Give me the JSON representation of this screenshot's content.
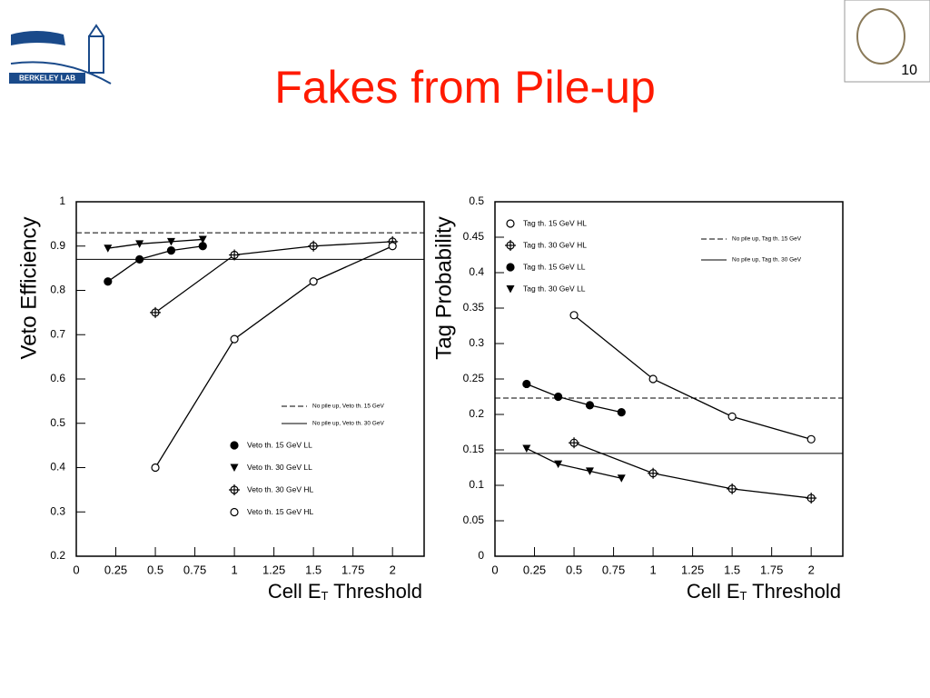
{
  "title": "Fakes from Pile-up",
  "page_number": "10",
  "logo_text": "BERKELEY LAB",
  "chart_data": [
    {
      "type": "line",
      "ylabel": "Veto Efficiency",
      "xlabel": [
        "Cell E",
        "T",
        " Threshold"
      ],
      "xlim": [
        0,
        2.2
      ],
      "ylim": [
        0.2,
        1
      ],
      "xticks": [
        0,
        0.25,
        0.5,
        0.75,
        1,
        1.25,
        1.5,
        1.75,
        2
      ],
      "yticks": [
        0.2,
        0.3,
        0.4,
        0.5,
        0.6,
        0.7,
        0.8,
        0.9,
        1
      ],
      "hlines": [
        {
          "name": "No pile up, Veto th. 15 GeV",
          "value": 0.93,
          "style": "dashed"
        },
        {
          "name": "No pile up, Veto th. 30 GeV",
          "value": 0.87,
          "style": "solid"
        }
      ],
      "series": [
        {
          "name": "Veto th. 15 GeV LL",
          "marker": "filled-circle",
          "color": "#000000",
          "x": [
            0.2,
            0.4,
            0.6,
            0.8
          ],
          "values": [
            0.82,
            0.87,
            0.89,
            0.9
          ]
        },
        {
          "name": "Veto th. 30 GeV LL",
          "marker": "triangle-down",
          "color": "#000000",
          "x": [
            0.2,
            0.4,
            0.6,
            0.8
          ],
          "values": [
            0.895,
            0.905,
            0.91,
            0.915
          ]
        },
        {
          "name": "Veto th. 30 GeV HL",
          "marker": "cross-circle",
          "color": "#000000",
          "x": [
            0.5,
            1,
            1.5,
            2
          ],
          "values": [
            0.75,
            0.88,
            0.9,
            0.91
          ]
        },
        {
          "name": "Veto th. 15 GeV HL",
          "marker": "open-circle",
          "color": "#000000",
          "x": [
            0.5,
            1,
            1.5,
            2
          ],
          "values": [
            0.4,
            0.69,
            0.82,
            0.9
          ]
        }
      ]
    },
    {
      "type": "line",
      "ylabel": "Tag Probability",
      "xlabel": [
        "Cell E",
        "T",
        " Threshold"
      ],
      "xlim": [
        0,
        2.2
      ],
      "ylim": [
        0,
        0.5
      ],
      "xticks": [
        0,
        0.25,
        0.5,
        0.75,
        1,
        1.25,
        1.5,
        1.75,
        2
      ],
      "yticks": [
        0,
        0.05,
        0.1,
        0.15,
        0.2,
        0.25,
        0.3,
        0.35,
        0.4,
        0.45,
        0.5
      ],
      "hlines": [
        {
          "name": "No pile up, Tag th. 15 GeV",
          "value": 0.223,
          "style": "dashed"
        },
        {
          "name": "No pile up, Tag th. 30 GeV",
          "value": 0.145,
          "style": "solid"
        }
      ],
      "series": [
        {
          "name": "Tag th. 15 GeV HL",
          "marker": "open-circle",
          "color": "#000000",
          "x": [
            0.5,
            1,
            1.5,
            2
          ],
          "values": [
            0.34,
            0.25,
            0.197,
            0.165
          ]
        },
        {
          "name": "Tag th. 30 GeV HL",
          "marker": "cross-circle",
          "color": "#000000",
          "x": [
            0.5,
            1,
            1.5,
            2
          ],
          "values": [
            0.16,
            0.117,
            0.095,
            0.082
          ]
        },
        {
          "name": "Tag th. 15 GeV LL",
          "marker": "filled-circle",
          "color": "#000000",
          "x": [
            0.2,
            0.4,
            0.6,
            0.8
          ],
          "values": [
            0.243,
            0.225,
            0.213,
            0.203
          ]
        },
        {
          "name": "Tag th. 30 GeV LL",
          "marker": "triangle-down",
          "color": "#000000",
          "x": [
            0.2,
            0.4,
            0.6,
            0.8
          ],
          "values": [
            0.152,
            0.13,
            0.12,
            0.11
          ]
        }
      ]
    }
  ]
}
